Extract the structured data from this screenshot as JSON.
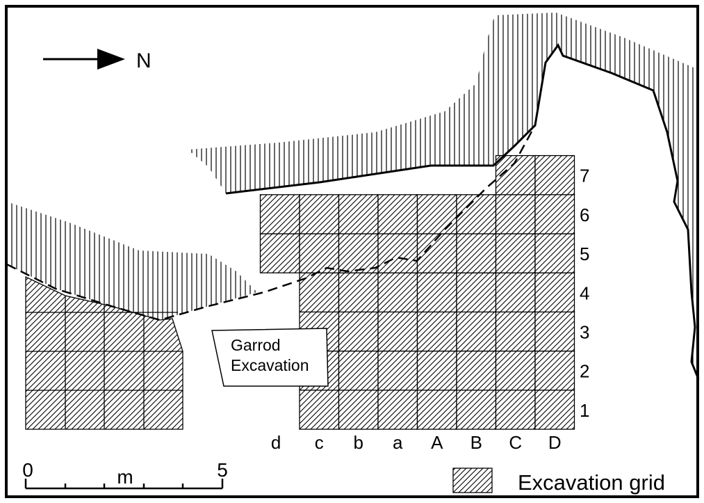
{
  "north": "N",
  "callout": [
    "Garrod",
    "Excavation"
  ],
  "columns": [
    "d",
    "c",
    "b",
    "a",
    "A",
    "B",
    "C",
    "D"
  ],
  "rows": [
    "1",
    "2",
    "3",
    "4",
    "5",
    "6",
    "7"
  ],
  "scale": {
    "start": "0",
    "unit": "m",
    "end": "5"
  },
  "legend": "Excavation grid"
}
